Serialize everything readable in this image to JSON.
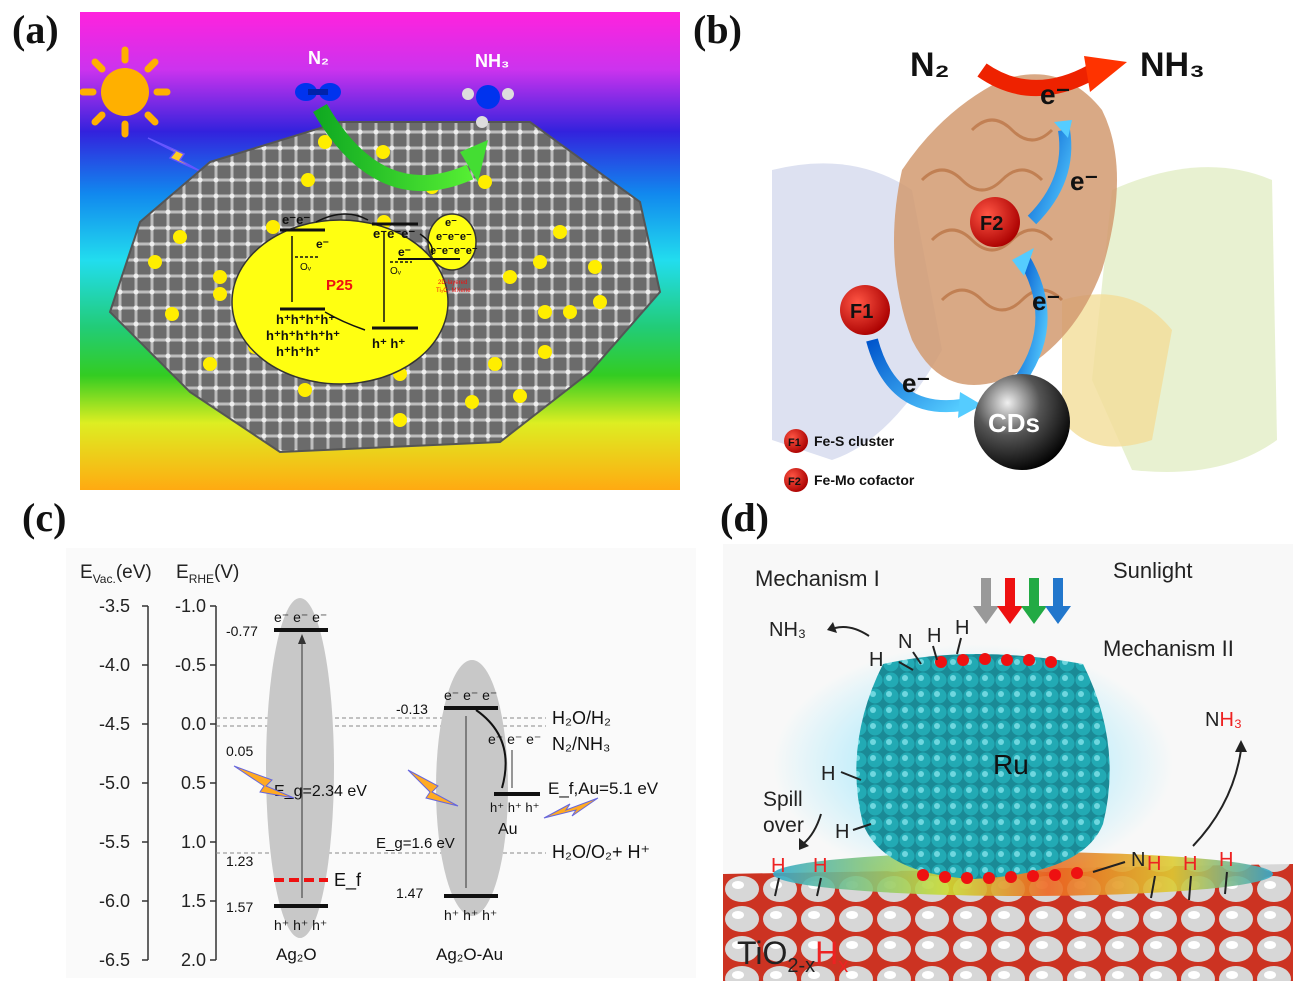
{
  "panel_a": {
    "letter": "(a)",
    "reactant": "N₂",
    "product": "NH₃",
    "core_label": "P25",
    "ov_label": "Oᵥ",
    "electrons_1": "e⁻e⁻",
    "electrons_2": "e⁻e⁻e⁻",
    "electrons_single": "e⁻",
    "holes_1": "h⁺h⁺h⁺h⁺",
    "holes_2": "h⁺h⁺h⁺h⁺h⁺",
    "holes_3": "h⁺h⁺h⁺",
    "holes_4": "h⁺ h⁺",
    "sphere_e1": "e⁻",
    "sphere_e2": "e⁻e⁻e⁻",
    "sphere_e3": "e⁻e⁻e⁻e⁻",
    "red_note_1": "2D-layered",
    "red_note_2": "Ti₃C₂ MXene"
  },
  "panel_b": {
    "letter": "(b)",
    "reactant": "N₂",
    "product": "NH₃",
    "electron": "e⁻",
    "f1": "F1",
    "f2": "F2",
    "cds": "CDs",
    "legend": [
      {
        "marker": "F1",
        "text": "Fe-S cluster"
      },
      {
        "marker": "F2",
        "text": "Fe-Mo cofactor"
      }
    ]
  },
  "panel_c": {
    "letter": "(c)",
    "axis_vac_label": "E",
    "axis_vac_sub": "Vac.",
    "axis_vac_unit": "(eV)",
    "axis_rhe_label": "E",
    "axis_rhe_sub": "RHE",
    "axis_rhe_unit": "(V)",
    "vac_ticks": [
      "-3.5",
      "-4.0",
      "-4.5",
      "-5.0",
      "-5.5",
      "-6.0",
      "-6.5"
    ],
    "rhe_ticks": [
      "-1.0",
      "-0.5",
      "0.0",
      "0.5",
      "1.0",
      "1.5",
      "2.0"
    ],
    "ag2o": {
      "name": "Ag₂O",
      "cb": "-0.77",
      "vb": "1.57",
      "ef_value": "0.05",
      "ef_label": "E_f",
      "mid_value": "1.23",
      "eg_label": "E_g=2.34 eV",
      "electrons": "e⁻ e⁻ e⁻",
      "holes": "h⁺ h⁺ h⁺"
    },
    "ag2o_au": {
      "name": "Ag₂O-Au",
      "cb": "-0.13",
      "vb": "1.47",
      "eg_label": "E_g=1.6 eV",
      "efau_label": "E_f,Au=5.1 eV",
      "au_label": "Au",
      "electrons": "e⁻ e⁻ e⁻",
      "electrons_transfer": "e⁻ e⁻ e⁻",
      "holes_au": "h⁺ h⁺ h⁺",
      "holes": "h⁺ h⁺ h⁺"
    },
    "redox": [
      "H₂O/H₂",
      "N₂/NH₃",
      "H₂O/O₂+ H⁺"
    ]
  },
  "panel_d": {
    "letter": "(d)",
    "mech1": "Mechanism I",
    "mech2": "Mechanism II",
    "sunlight": "Sunlight",
    "nh3_left": "NH₃",
    "nh3_right_n": "N",
    "nh3_right_h": "H₃",
    "ru": "Ru",
    "spill": "Spill",
    "over": "over",
    "h": "H",
    "n": "N",
    "support_main": "TiO",
    "support_sub": "2-x",
    "support_h": "H",
    "support_x": "x"
  }
}
